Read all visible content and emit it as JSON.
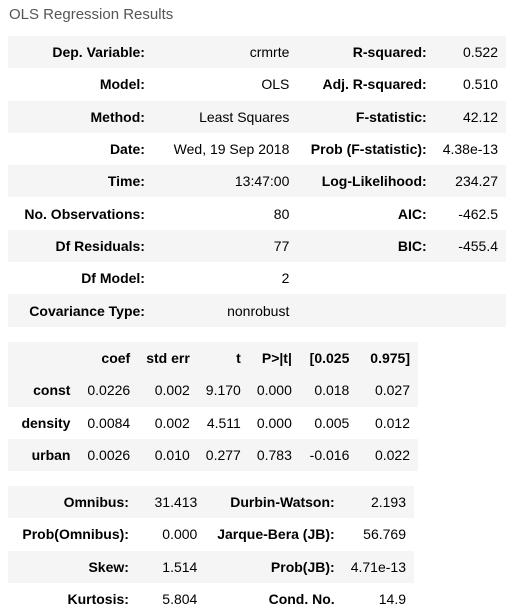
{
  "caption": "OLS Regression Results",
  "summary": {
    "rows": [
      [
        "Dep. Variable:",
        "crmrte",
        "R-squared:",
        "0.522"
      ],
      [
        "Model:",
        "OLS",
        "Adj. R-squared:",
        "0.510"
      ],
      [
        "Method:",
        "Least Squares",
        "F-statistic:",
        "42.12"
      ],
      [
        "Date:",
        "Wed, 19 Sep 2018",
        "Prob (F-statistic):",
        "4.38e-13"
      ],
      [
        "Time:",
        "13:47:00",
        "Log-Likelihood:",
        "234.27"
      ],
      [
        "No. Observations:",
        "80",
        "AIC:",
        "-462.5"
      ],
      [
        "Df Residuals:",
        "77",
        "BIC:",
        "-455.4"
      ],
      [
        "Df Model:",
        "2",
        "",
        ""
      ],
      [
        "Covariance Type:",
        "nonrobust",
        "",
        ""
      ]
    ]
  },
  "coef": {
    "headers": [
      "",
      "coef",
      "std err",
      "t",
      "P>|t|",
      "[0.025",
      "0.975]"
    ],
    "rows": [
      [
        "const",
        "0.0226",
        "0.002",
        "9.170",
        "0.000",
        "0.018",
        "0.027"
      ],
      [
        "density",
        "0.0084",
        "0.002",
        "4.511",
        "0.000",
        "0.005",
        "0.012"
      ],
      [
        "urban",
        "0.0026",
        "0.010",
        "0.277",
        "0.783",
        "-0.016",
        "0.022"
      ]
    ]
  },
  "diag": {
    "rows": [
      [
        "Omnibus:",
        "31.413",
        "Durbin-Watson:",
        "2.193"
      ],
      [
        "Prob(Omnibus):",
        "0.000",
        "Jarque-Bera (JB):",
        "56.769"
      ],
      [
        "Skew:",
        "1.514",
        "Prob(JB):",
        "4.71e-13"
      ],
      [
        "Kurtosis:",
        "5.804",
        "Cond. No.",
        "14.9"
      ]
    ]
  }
}
